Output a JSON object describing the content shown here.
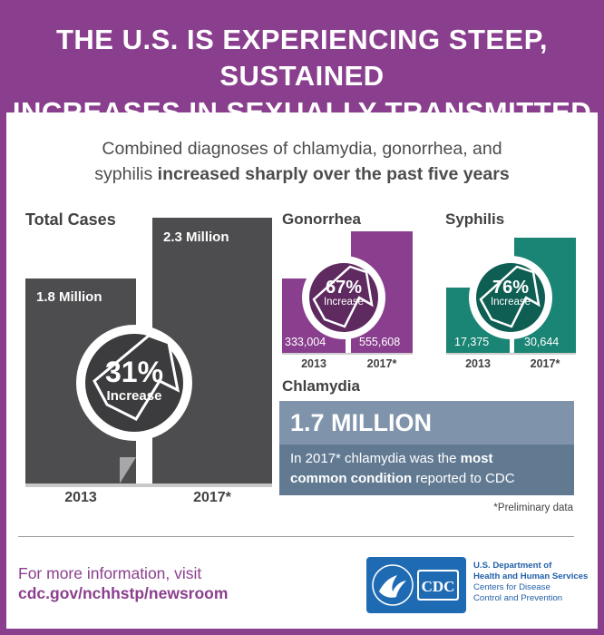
{
  "header": {
    "title_line1": "THE U.S. IS EXPERIENCING STEEP, SUSTAINED",
    "title_line2": "INCREASES IN SEXUALLY TRANSMITTED DISEASES"
  },
  "subtitle": {
    "line1": "Combined diagnoses of chlamydia, gonorrhea, and",
    "line2_plain": "syphilis ",
    "line2_bold": "increased sharply over the past five years"
  },
  "colors": {
    "brand_purple": "#8a3f8e",
    "total_bar": "#4d4d4f",
    "gonorrhea_bar": "#8a3f8e",
    "gonorrhea_dark": "#5e2a60",
    "syphilis_bar": "#1a8574",
    "syphilis_dark": "#0e5e53",
    "chlamydia_box": "#617a92",
    "chlamydia_header": "#7f93ab",
    "cdc_blue": "#1f6bb3"
  },
  "total_cases": {
    "label": "Total Cases",
    "increase_pct": "31%",
    "increase_label": "Increase",
    "bars": [
      {
        "year": "2013",
        "value_label": "1.8 Million"
      },
      {
        "year": "2017*",
        "value_label": "2.3 Million"
      }
    ]
  },
  "gonorrhea": {
    "label": "Gonorrhea",
    "increase_pct": "67%",
    "increase_label": "Increase",
    "bars": [
      {
        "year": "2013",
        "value_label": "333,004"
      },
      {
        "year": "2017*",
        "value_label": "555,608"
      }
    ]
  },
  "syphilis": {
    "label": "Syphilis",
    "increase_pct": "76%",
    "increase_label": "Increase",
    "bars": [
      {
        "year": "2013",
        "value_label": "17,375"
      },
      {
        "year": "2017*",
        "value_label": "30,644"
      }
    ]
  },
  "chlamydia": {
    "label": "Chlamydia",
    "headline": "1.7 MILLION",
    "desc_part1": "In 2017* chlamydia was the ",
    "desc_bold1": "most",
    "desc_bold2": "common condition",
    "desc_part2": " reported to CDC"
  },
  "footnote": "*Preliminary data",
  "more_info": {
    "line1": "For more information, visit",
    "line2": "cdc.gov/nchhstp/newsroom"
  },
  "agency": {
    "logo_text": "CDC",
    "line1": "U.S. Department of",
    "line2": "Health and Human Services",
    "line3": "Centers for Disease",
    "line4": "Control and Prevention"
  },
  "chart_data": [
    {
      "type": "bar",
      "title": "Total Cases",
      "categories": [
        "2013",
        "2017*"
      ],
      "values": [
        1800000,
        2300000
      ],
      "value_labels": [
        "1.8 Million",
        "2.3 Million"
      ],
      "annotation": "31% Increase"
    },
    {
      "type": "bar",
      "title": "Gonorrhea",
      "categories": [
        "2013",
        "2017*"
      ],
      "values": [
        333004,
        555608
      ],
      "annotation": "67% Increase"
    },
    {
      "type": "bar",
      "title": "Syphilis",
      "categories": [
        "2013",
        "2017*"
      ],
      "values": [
        17375,
        30644
      ],
      "annotation": "76% Increase"
    }
  ]
}
